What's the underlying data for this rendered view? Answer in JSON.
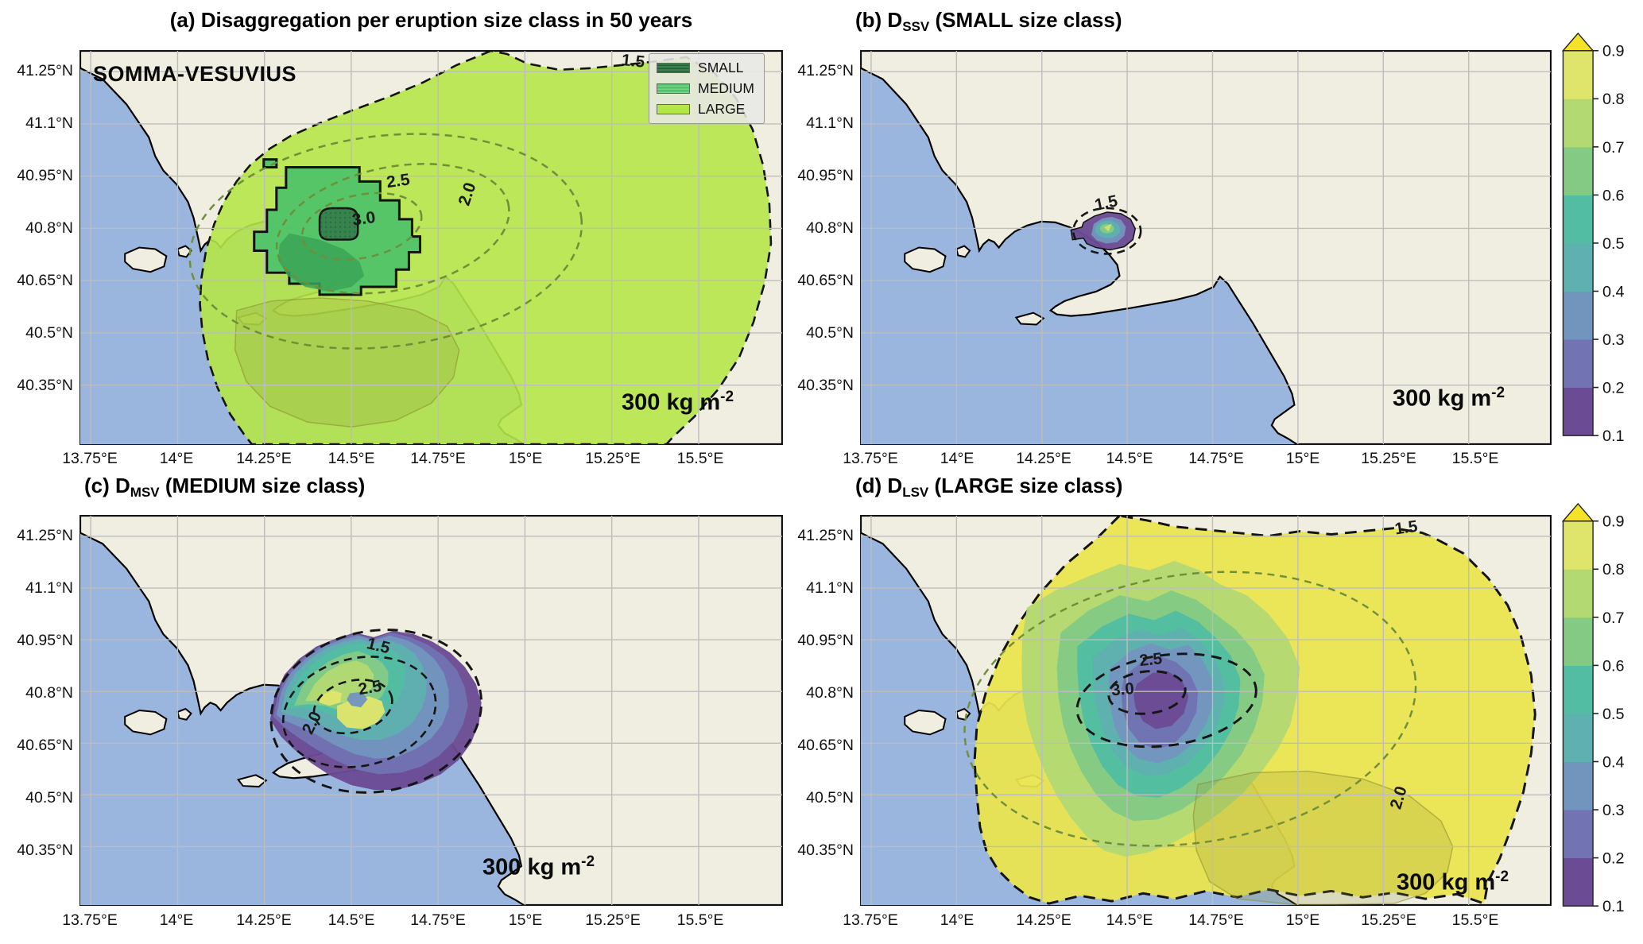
{
  "panels": {
    "a": {
      "title": {
        "pre": "(a) Disaggregation per eruption size class in 50 years",
        "sub": "",
        "post": ""
      },
      "map_label": "SOMMA-VESUVIUS",
      "contours": {
        "l15": "1.5",
        "l20": "2.0",
        "l25": "2.5",
        "l30": "3.0"
      }
    },
    "b": {
      "title": {
        "pre": "(b) D",
        "sub": "SSV",
        "post": " (SMALL size class)"
      },
      "contours": {
        "l15": "1.5"
      }
    },
    "c": {
      "title": {
        "pre": "(c) D",
        "sub": "MSV",
        "post": " (MEDIUM size class)"
      },
      "contours": {
        "l15": "1.5",
        "l20": "2.0",
        "l25": "2.5"
      }
    },
    "d": {
      "title": {
        "pre": "(d) D",
        "sub": "LSV",
        "post": " (LARGE size class)"
      },
      "contours": {
        "l15": "1.5",
        "l20": "2.0",
        "l25": "2.5",
        "l30": "3.0"
      }
    }
  },
  "legend": {
    "items": [
      {
        "label": "SMALL"
      },
      {
        "label": "MEDIUM"
      },
      {
        "label": "LARGE"
      }
    ]
  },
  "annotation": {
    "text": "300 kg m",
    "sup": "-2"
  },
  "axes": {
    "x_ticks": [
      "13.75°E",
      "14°E",
      "14.25°E",
      "14.5°E",
      "14.75°E",
      "15°E",
      "15.25°E",
      "15.5°E"
    ],
    "y_ticks": [
      "41.25°N",
      "41.1°N",
      "40.95°N",
      "40.8°N",
      "40.65°N",
      "40.5°N",
      "40.35°N"
    ]
  },
  "colorbar": {
    "ticks": [
      "0.1",
      "0.2",
      "0.3",
      "0.4",
      "0.5",
      "0.6",
      "0.7",
      "0.8",
      "0.9"
    ],
    "band_colors": [
      "#6b4b94",
      "#7173b2",
      "#7295bd",
      "#5fb0b0",
      "#52bda2",
      "#84ca85",
      "#b3da72",
      "#dfe56b"
    ],
    "arrow_color": "#f3e227"
  },
  "colors": {
    "sea": "#9ab6de",
    "land": "#efeee0",
    "grid": "#bdbdbd",
    "large": "#b5e649",
    "medium": "#4fc369",
    "medium_dark": "#3aa357",
    "small": "#37834d",
    "yellow_field": "#ebe54e",
    "olive_contour": "#6f8f3a",
    "olive_dark": "#8a8a2e"
  },
  "chart_data": {
    "type": "heatmap",
    "figure": "Hazard disaggregation per eruption size class at Somma-Vesuvius for tephra load exceeding 300 kg m-2 in 50 years; four geographic contour-map panels over the Campania region (Gulf of Naples, Italy)",
    "map_extent": {
      "lon_tick_values": [
        13.75,
        14.0,
        14.25,
        14.5,
        14.75,
        15.0,
        15.25,
        15.5
      ],
      "lat_tick_values": [
        41.25,
        41.1,
        40.95,
        40.8,
        40.65,
        40.5,
        40.35
      ],
      "lon_range": [
        13.72,
        15.74
      ],
      "lat_range": [
        40.18,
        41.31
      ]
    },
    "volcano": {
      "name": "SOMMA-VESUVIUS",
      "lon": 14.43,
      "lat": 40.82
    },
    "colorbar": {
      "range": [
        0.1,
        0.9
      ],
      "tick_values": [
        0.1,
        0.2,
        0.3,
        0.4,
        0.5,
        0.6,
        0.7,
        0.8,
        0.9
      ],
      "colormap": "viridis",
      "extend": "max",
      "applies_to_panels": [
        "b",
        "c",
        "d"
      ]
    },
    "threshold": "300 kg m-2",
    "panels": [
      {
        "id": "a",
        "title": "(a) Disaggregation per eruption size class in 50 years",
        "legend_classes": [
          "SMALL",
          "MEDIUM",
          "LARGE"
        ],
        "labeled_contour_levels": [
          1.5,
          2.0,
          2.5,
          3.0
        ],
        "description": "Nested dominant-class regions: LARGE class (light green, dashed 1.5 boundary) covers most of the region; MEDIUM class (mid green, solid black blocky boundary) covers the area around the volcano; SMALL class (dark hatched green) only the small summit patch."
      },
      {
        "id": "b",
        "variable": "D_SSV",
        "size_class": "SMALL",
        "labeled_contour_levels": [
          1.5
        ],
        "description": "Disaggregation values non-zero only within ~10 km of the vent: ~0.1-0.3 (purple/blue) at the rim rising to ~0.5-0.7 (teal/green) at the center."
      },
      {
        "id": "c",
        "variable": "D_MSV",
        "size_class": "MEDIUM",
        "labeled_contour_levels": [
          1.5,
          2.0,
          2.5
        ],
        "description": "Medium-size anomaly (~40 km wide) around the vent: ~0.1-0.3 (purple/blue) on the eastern rim grading to ~0.7-0.9 (green to yellow-green) just west/south of the vent."
      },
      {
        "id": "d",
        "variable": "D_LSV",
        "size_class": "LARGE",
        "labeled_contour_levels": [
          1.5,
          2.0,
          2.5,
          3.0
        ],
        "description": "~0.8-0.9 (yellow) over almost the whole region, decreasing through green/teal/blue rings to ~0.1-0.2 (purple) at the vent."
      }
    ]
  }
}
